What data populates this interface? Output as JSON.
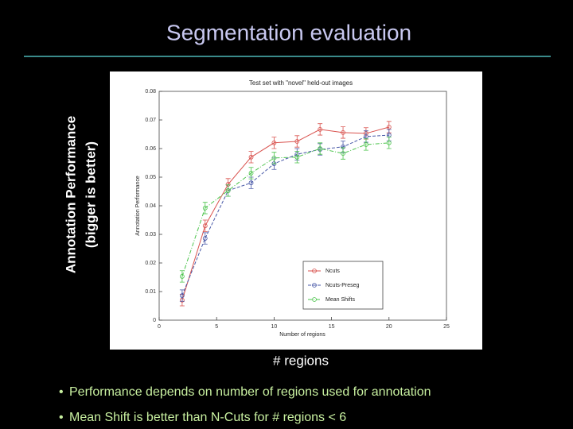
{
  "slide": {
    "title": "Segmentation evaluation",
    "side_label": [
      "Annotation Performance",
      "(bigger is better)"
    ],
    "x_caption": "# regions",
    "bullets": [
      "Performance depends on number of regions used for annotation",
      "Mean Shift is better than N-Cuts  for  # regions < 6"
    ]
  },
  "chart_data": {
    "type": "line",
    "title": "Test set with \"novel\" held-out images",
    "xlabel": "Number of regions",
    "ylabel": "Annotation Performance",
    "x": [
      2,
      4,
      6,
      8,
      10,
      12,
      14,
      16,
      18,
      20
    ],
    "series": [
      {
        "name": "Ncuts",
        "color": "#d9534f",
        "dash": "solid",
        "values": [
          0.007,
          0.033,
          0.0475,
          0.057,
          0.062,
          0.0625,
          0.0667,
          0.0656,
          0.0653,
          0.0675
        ],
        "errors": [
          0.002,
          0.002,
          0.002,
          0.002,
          0.002,
          0.002,
          0.002,
          0.002,
          0.002,
          0.002
        ]
      },
      {
        "name": "Ncuts-Preseg",
        "color": "#4a5aa8",
        "dash": "dashed",
        "values": [
          0.0086,
          0.0286,
          0.0453,
          0.048,
          0.0547,
          0.058,
          0.0597,
          0.0606,
          0.0642,
          0.0647
        ],
        "errors": [
          0.002,
          0.002,
          0.002,
          0.002,
          0.002,
          0.002,
          0.002,
          0.002,
          0.002,
          0.002
        ]
      },
      {
        "name": "Mean Shifts",
        "color": "#4cc44c",
        "dash": "dashdot",
        "values": [
          0.0153,
          0.0392,
          0.0453,
          0.0514,
          0.0567,
          0.057,
          0.06,
          0.0583,
          0.0614,
          0.062
        ],
        "errors": [
          0.002,
          0.002,
          0.002,
          0.002,
          0.002,
          0.002,
          0.002,
          0.002,
          0.002,
          0.002
        ]
      }
    ],
    "xlim": [
      0,
      25
    ],
    "xticks": [
      0,
      5,
      10,
      15,
      20,
      25
    ],
    "ylim": [
      0,
      0.08
    ],
    "yticks": [
      0,
      0.01,
      0.02,
      0.03,
      0.04,
      0.05,
      0.06,
      0.07,
      0.08
    ],
    "legend": "lower right"
  }
}
